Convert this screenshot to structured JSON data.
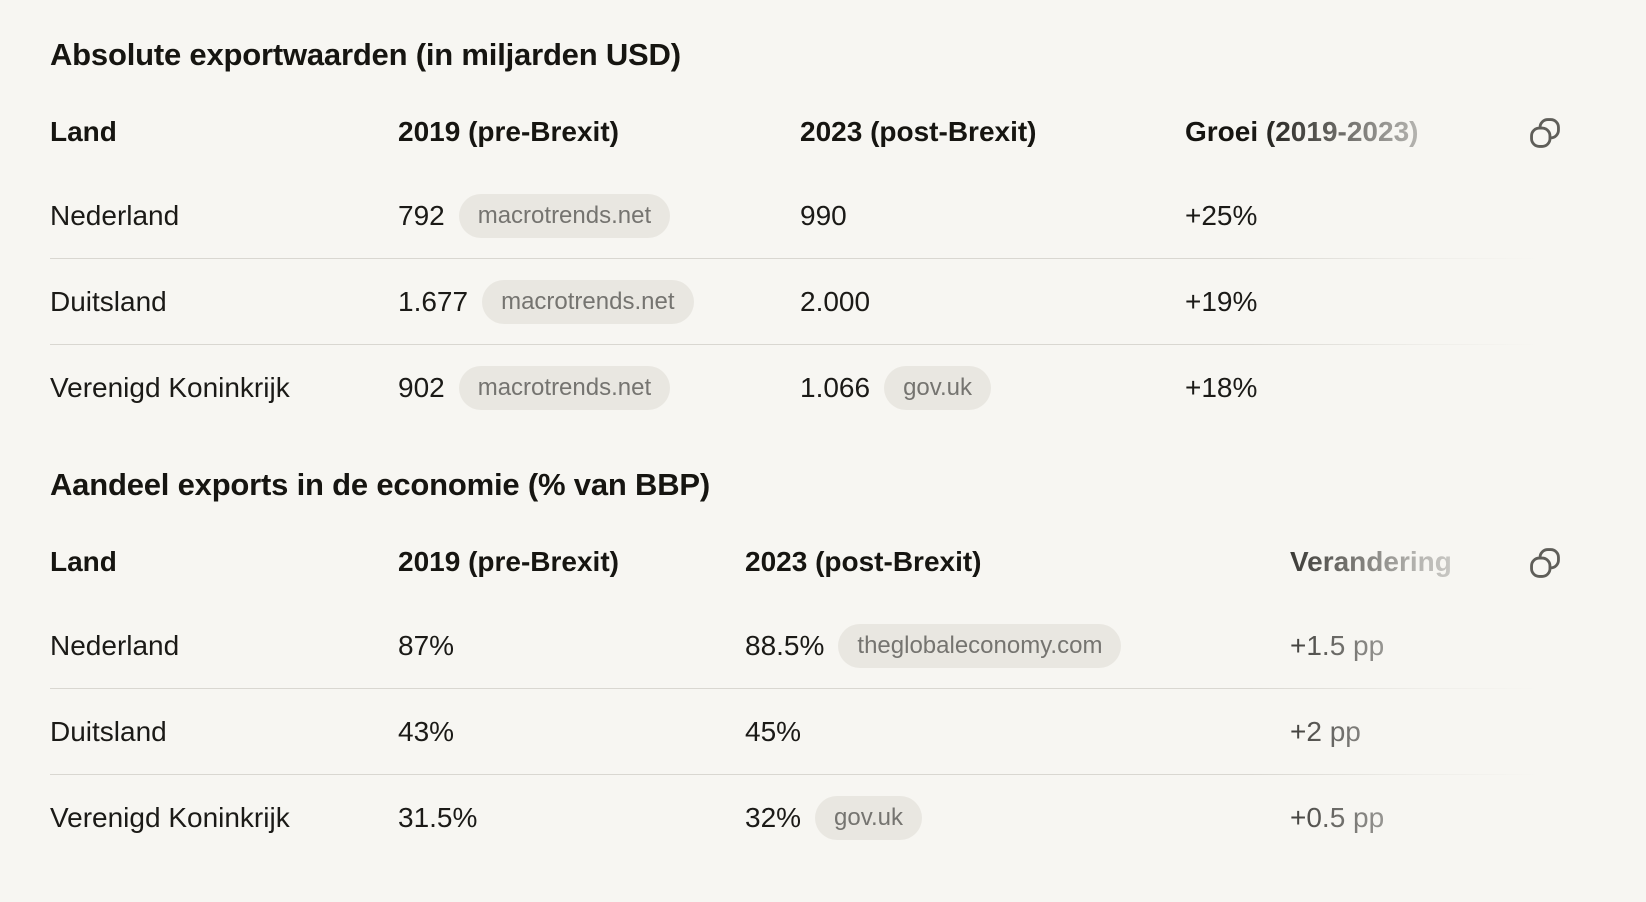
{
  "page": {
    "background_color": "#F7F6F2",
    "text_color": "#1B1A17",
    "divider_color": "#D9D7D1",
    "pill_background": "#E9E7E1",
    "pill_text_color": "#757470",
    "icon_color": "#5F5E59"
  },
  "sections": [
    {
      "title": "Absolute exportwaarden (in miljarden USD)",
      "columns": [
        "Land",
        "2019 (pre-Brexit)",
        "2023 (post-Brexit)",
        "Groei (2019-2023)"
      ],
      "rows": [
        [
          {
            "text": "Nederland"
          },
          {
            "text": "792",
            "source": "macrotrends.net"
          },
          {
            "text": "990"
          },
          {
            "text": "+25%"
          }
        ],
        [
          {
            "text": "Duitsland"
          },
          {
            "text": "1.677",
            "source": "macrotrends.net"
          },
          {
            "text": "2.000"
          },
          {
            "text": "+19%"
          }
        ],
        [
          {
            "text": "Verenigd Koninkrijk"
          },
          {
            "text": "902",
            "source": "macrotrends.net"
          },
          {
            "text": "1.066",
            "source": "gov.uk"
          },
          {
            "text": "+18%"
          }
        ]
      ],
      "copy_button_label": "Copy table"
    },
    {
      "title": "Aandeel exports in de economie (% van BBP)",
      "columns": [
        "Land",
        "2019 (pre-Brexit)",
        "2023 (post-Brexit)",
        "Verandering"
      ],
      "rows": [
        [
          {
            "text": "Nederland"
          },
          {
            "text": "87%"
          },
          {
            "text": "88.5%",
            "source": "theglobaleconomy.com"
          },
          {
            "text": "+1.5 pp"
          }
        ],
        [
          {
            "text": "Duitsland"
          },
          {
            "text": "43%"
          },
          {
            "text": "45%"
          },
          {
            "text": "+2 pp"
          }
        ],
        [
          {
            "text": "Verenigd Koninkrijk"
          },
          {
            "text": "31.5%"
          },
          {
            "text": "32%",
            "source": "gov.uk"
          },
          {
            "text": "+0.5 pp"
          }
        ]
      ],
      "copy_button_label": "Copy table"
    }
  ]
}
